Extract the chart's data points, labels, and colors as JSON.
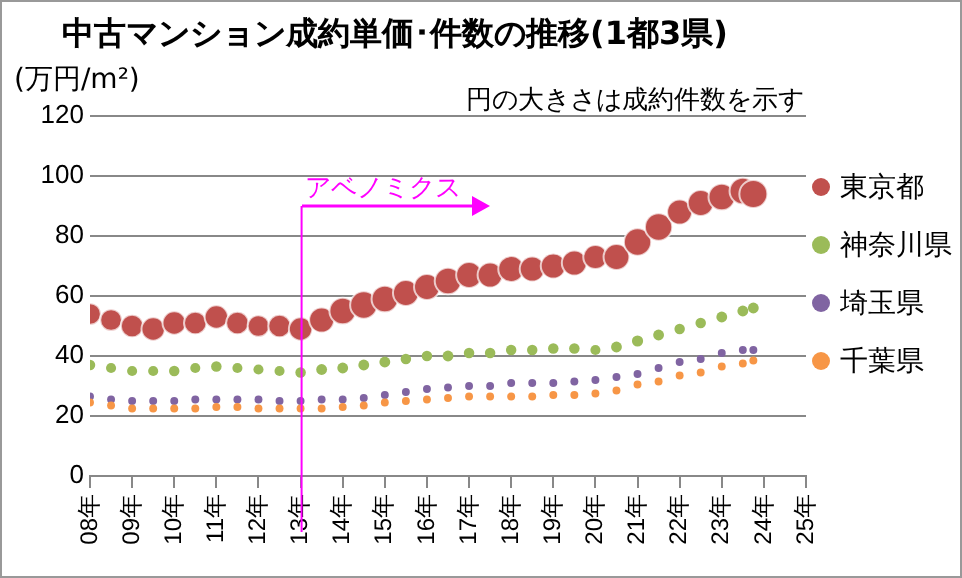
{
  "chart_data": {
    "type": "bubble",
    "title": "中古マンション成約単価･件数の推移(1都3県)",
    "subtitle": "円の大きさは成約件数を示す",
    "ylabel": "(万円/m²)",
    "x": [
      "2008-01",
      "2008-07",
      "2009-01",
      "2009-07",
      "2010-01",
      "2010-07",
      "2011-01",
      "2011-07",
      "2012-01",
      "2012-07",
      "2013-01",
      "2013-07",
      "2014-01",
      "2014-07",
      "2015-01",
      "2015-07",
      "2016-01",
      "2016-07",
      "2017-01",
      "2017-07",
      "2018-01",
      "2018-07",
      "2019-01",
      "2019-07",
      "2020-01",
      "2020-07",
      "2021-01",
      "2021-07",
      "2022-01",
      "2022-07",
      "2023-01",
      "2023-07",
      "2023-10"
    ],
    "xlim": [
      "2008",
      "2025"
    ],
    "xticks": [
      {
        "value": "2008",
        "label": "08年"
      },
      {
        "value": "2009",
        "label": "09年"
      },
      {
        "value": "2010",
        "label": "10年"
      },
      {
        "value": "2011",
        "label": "11年"
      },
      {
        "value": "2012",
        "label": "12年"
      },
      {
        "value": "2013",
        "label": "13年"
      },
      {
        "value": "2014",
        "label": "14年"
      },
      {
        "value": "2015",
        "label": "15年"
      },
      {
        "value": "2016",
        "label": "16年"
      },
      {
        "value": "2017",
        "label": "17年"
      },
      {
        "value": "2018",
        "label": "18年"
      },
      {
        "value": "2019",
        "label": "19年"
      },
      {
        "value": "2020",
        "label": "20年"
      },
      {
        "value": "2021",
        "label": "21年"
      },
      {
        "value": "2022",
        "label": "22年"
      },
      {
        "value": "2023",
        "label": "23年"
      },
      {
        "value": "2024",
        "label": "24年"
      },
      {
        "value": "2025",
        "label": "25年"
      }
    ],
    "ylim": [
      0,
      120
    ],
    "yticks": [
      0,
      20,
      40,
      60,
      80,
      100,
      120
    ],
    "grid": "y",
    "legend": "right",
    "ref_lines": [
      {
        "axis": "x",
        "value": "2013-01",
        "label": "アベノミクス",
        "color": "#ff00ff"
      }
    ],
    "series": [
      {
        "name": "東京都",
        "color": "#c0504d",
        "values": [
          54,
          52,
          50,
          49,
          51,
          51,
          53,
          51,
          50,
          50,
          49,
          52,
          55,
          57,
          59,
          61,
          63,
          65,
          67,
          67,
          69,
          69,
          70,
          71,
          73,
          73,
          78,
          83,
          88,
          91,
          93,
          95,
          94
        ],
        "sizes": [
          0.6,
          0.6,
          0.65,
          0.7,
          0.7,
          0.65,
          0.7,
          0.65,
          0.6,
          0.65,
          0.7,
          0.8,
          0.9,
          0.95,
          0.9,
          0.85,
          0.85,
          0.9,
          0.85,
          0.8,
          0.85,
          0.8,
          0.8,
          0.8,
          0.75,
          0.85,
          0.95,
          0.95,
          0.8,
          0.85,
          0.9,
          0.9,
          1
        ]
      },
      {
        "name": "神奈川県",
        "color": "#9bbb59",
        "values": [
          37,
          36,
          35,
          35,
          35,
          36,
          36.5,
          36,
          35.5,
          35,
          34.5,
          35.5,
          36,
          37,
          38,
          39,
          40,
          40,
          41,
          41,
          42,
          42,
          42.5,
          42.5,
          42,
          43,
          45,
          47,
          49,
          51,
          53,
          55,
          56
        ],
        "sizes": [
          0.14,
          0.13,
          0.13,
          0.13,
          0.14,
          0.13,
          0.14,
          0.13,
          0.13,
          0.13,
          0.14,
          0.15,
          0.15,
          0.15,
          0.15,
          0.14,
          0.14,
          0.15,
          0.14,
          0.14,
          0.14,
          0.14,
          0.14,
          0.14,
          0.13,
          0.15,
          0.16,
          0.15,
          0.14,
          0.14,
          0.15,
          0.15,
          0.15
        ]
      },
      {
        "name": "埼玉県",
        "color": "#8064a2",
        "values": [
          26.5,
          25.5,
          25,
          25,
          25,
          25.5,
          25.5,
          25.5,
          25.5,
          25,
          25,
          25.5,
          25.5,
          26,
          27,
          28,
          29,
          29.5,
          30,
          30,
          31,
          31,
          31,
          31.5,
          32,
          33,
          34,
          36,
          38,
          39,
          41,
          42,
          42
        ],
        "sizes": [
          0.08,
          0.08,
          0.08,
          0.08,
          0.08,
          0.08,
          0.08,
          0.08,
          0.08,
          0.08,
          0.08,
          0.08,
          0.08,
          0.08,
          0.08,
          0.08,
          0.08,
          0.08,
          0.08,
          0.08,
          0.08,
          0.08,
          0.08,
          0.08,
          0.08,
          0.08,
          0.08,
          0.08,
          0.08,
          0.08,
          0.08,
          0.08,
          0.08
        ]
      },
      {
        "name": "千葉県",
        "color": "#f79646",
        "values": [
          24.5,
          23.5,
          22.5,
          22.5,
          22.5,
          22.5,
          23,
          23,
          22.5,
          22.5,
          22.5,
          22.5,
          23,
          23.5,
          24.5,
          25,
          25.5,
          26,
          26.5,
          26.5,
          26.5,
          26.5,
          27,
          27,
          27.5,
          28.5,
          30.5,
          31.5,
          33.5,
          34.5,
          36.5,
          37.5,
          38.5
        ],
        "sizes": [
          0.08,
          0.08,
          0.08,
          0.08,
          0.08,
          0.08,
          0.08,
          0.08,
          0.08,
          0.08,
          0.08,
          0.08,
          0.08,
          0.08,
          0.08,
          0.08,
          0.08,
          0.08,
          0.08,
          0.08,
          0.08,
          0.08,
          0.08,
          0.08,
          0.08,
          0.08,
          0.08,
          0.08,
          0.08,
          0.08,
          0.08,
          0.08,
          0.08
        ]
      }
    ]
  }
}
